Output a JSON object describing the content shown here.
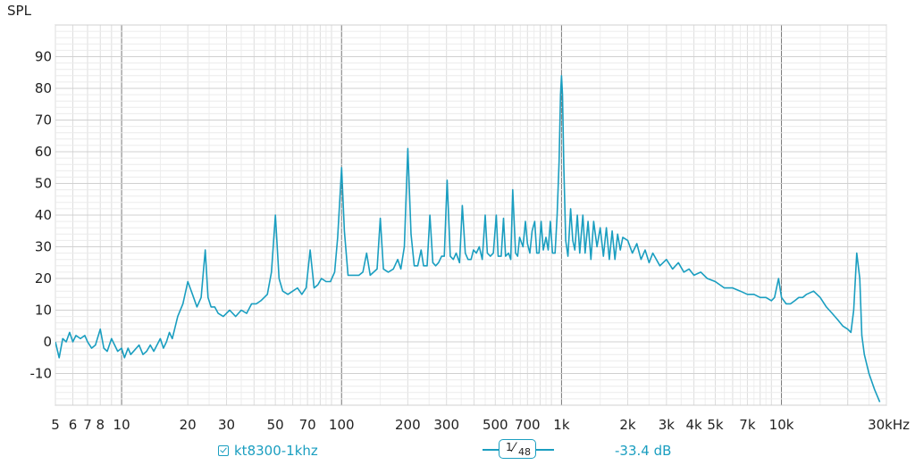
{
  "chart_data": {
    "type": "line",
    "ylabel": "SPL",
    "x_scale": "log",
    "xlim": [
      5,
      30000
    ],
    "ylim": [
      -20,
      100
    ],
    "x_tick_labels": [
      {
        "v": 5,
        "label": "5"
      },
      {
        "v": 6,
        "label": "6"
      },
      {
        "v": 7,
        "label": "7"
      },
      {
        "v": 8,
        "label": "8"
      },
      {
        "v": 10,
        "label": "10"
      },
      {
        "v": 20,
        "label": "20"
      },
      {
        "v": 30,
        "label": "30"
      },
      {
        "v": 50,
        "label": "50"
      },
      {
        "v": 70,
        "label": "70"
      },
      {
        "v": 100,
        "label": "100"
      },
      {
        "v": 200,
        "label": "200"
      },
      {
        "v": 300,
        "label": "300"
      },
      {
        "v": 500,
        "label": "500"
      },
      {
        "v": 700,
        "label": "700"
      },
      {
        "v": 1000,
        "label": "1k"
      },
      {
        "v": 2000,
        "label": "2k"
      },
      {
        "v": 3000,
        "label": "3k"
      },
      {
        "v": 4000,
        "label": "4k"
      },
      {
        "v": 5000,
        "label": "5k"
      },
      {
        "v": 7000,
        "label": "7k"
      },
      {
        "v": 10000,
        "label": "10k"
      },
      {
        "v": 30000,
        "label": "30kHz"
      }
    ],
    "y_ticks": [
      -10,
      0,
      10,
      20,
      30,
      40,
      50,
      60,
      70,
      80,
      90
    ],
    "grid": true,
    "series": [
      {
        "name": "kt8300-1khz",
        "color": "#1a9ec0",
        "points": [
          [
            5,
            0
          ],
          [
            5.2,
            -5
          ],
          [
            5.4,
            1
          ],
          [
            5.6,
            0
          ],
          [
            5.8,
            3
          ],
          [
            6,
            0
          ],
          [
            6.2,
            2
          ],
          [
            6.5,
            1
          ],
          [
            6.8,
            2
          ],
          [
            7,
            0
          ],
          [
            7.3,
            -2
          ],
          [
            7.6,
            -1
          ],
          [
            8,
            4
          ],
          [
            8.3,
            -2
          ],
          [
            8.6,
            -3
          ],
          [
            9,
            1
          ],
          [
            9.3,
            -1
          ],
          [
            9.6,
            -3
          ],
          [
            10,
            -2
          ],
          [
            10.3,
            -5
          ],
          [
            10.7,
            -2
          ],
          [
            11,
            -4
          ],
          [
            12,
            -1
          ],
          [
            12.5,
            -4
          ],
          [
            13,
            -3
          ],
          [
            13.5,
            -1
          ],
          [
            14,
            -3
          ],
          [
            15,
            1
          ],
          [
            15.5,
            -2
          ],
          [
            16,
            0
          ],
          [
            16.5,
            3
          ],
          [
            17,
            1
          ],
          [
            18,
            8
          ],
          [
            19,
            12
          ],
          [
            20,
            19
          ],
          [
            20.5,
            17
          ],
          [
            21,
            15
          ],
          [
            22,
            11
          ],
          [
            23,
            14
          ],
          [
            24,
            29
          ],
          [
            24.7,
            14
          ],
          [
            25.5,
            11
          ],
          [
            26.5,
            11
          ],
          [
            27.5,
            9
          ],
          [
            29,
            8
          ],
          [
            31,
            10
          ],
          [
            33,
            8
          ],
          [
            35,
            10
          ],
          [
            37,
            9
          ],
          [
            39,
            12
          ],
          [
            41,
            12
          ],
          [
            43,
            13
          ],
          [
            46,
            15
          ],
          [
            48,
            22
          ],
          [
            50,
            40
          ],
          [
            52,
            20
          ],
          [
            54,
            16
          ],
          [
            57,
            15
          ],
          [
            60,
            16
          ],
          [
            63,
            17
          ],
          [
            66,
            15
          ],
          [
            69,
            17
          ],
          [
            72,
            29
          ],
          [
            75,
            17
          ],
          [
            78,
            18
          ],
          [
            81,
            20
          ],
          [
            85,
            19
          ],
          [
            89,
            19
          ],
          [
            93,
            22
          ],
          [
            96,
            33
          ],
          [
            100,
            55
          ],
          [
            103,
            35
          ],
          [
            107,
            21
          ],
          [
            113,
            21
          ],
          [
            120,
            21
          ],
          [
            125,
            22
          ],
          [
            130,
            28
          ],
          [
            135,
            21
          ],
          [
            145,
            23
          ],
          [
            150,
            39
          ],
          [
            155,
            23
          ],
          [
            163,
            22
          ],
          [
            172,
            23
          ],
          [
            180,
            26
          ],
          [
            186,
            23
          ],
          [
            193,
            30
          ],
          [
            200,
            61
          ],
          [
            207,
            34
          ],
          [
            214,
            24
          ],
          [
            222,
            24
          ],
          [
            230,
            29
          ],
          [
            236,
            24
          ],
          [
            245,
            24
          ],
          [
            252,
            40
          ],
          [
            260,
            25
          ],
          [
            268,
            24
          ],
          [
            276,
            25
          ],
          [
            285,
            27
          ],
          [
            293,
            27
          ],
          [
            302,
            51
          ],
          [
            312,
            27
          ],
          [
            322,
            26
          ],
          [
            332,
            28
          ],
          [
            344,
            25
          ],
          [
            354,
            43
          ],
          [
            365,
            28
          ],
          [
            376,
            26
          ],
          [
            388,
            26
          ],
          [
            398,
            29
          ],
          [
            410,
            28
          ],
          [
            423,
            30
          ],
          [
            436,
            26
          ],
          [
            450,
            40
          ],
          [
            460,
            28
          ],
          [
            475,
            27
          ],
          [
            490,
            28
          ],
          [
            505,
            40
          ],
          [
            515,
            27
          ],
          [
            532,
            27
          ],
          [
            545,
            39
          ],
          [
            557,
            27
          ],
          [
            575,
            28
          ],
          [
            588,
            26
          ],
          [
            600,
            48
          ],
          [
            618,
            28
          ],
          [
            632,
            27
          ],
          [
            645,
            33
          ],
          [
            668,
            30
          ],
          [
            685,
            38
          ],
          [
            700,
            31
          ],
          [
            718,
            28
          ],
          [
            735,
            35
          ],
          [
            755,
            38
          ],
          [
            772,
            28
          ],
          [
            790,
            28
          ],
          [
            808,
            38
          ],
          [
            826,
            29
          ],
          [
            850,
            33
          ],
          [
            870,
            29
          ],
          [
            890,
            38
          ],
          [
            910,
            28
          ],
          [
            935,
            28
          ],
          [
            955,
            40
          ],
          [
            975,
            57
          ],
          [
            990,
            78
          ],
          [
            1000,
            84
          ],
          [
            1010,
            78
          ],
          [
            1025,
            55
          ],
          [
            1045,
            32
          ],
          [
            1070,
            27
          ],
          [
            1100,
            42
          ],
          [
            1125,
            32
          ],
          [
            1150,
            29
          ],
          [
            1180,
            40
          ],
          [
            1210,
            28
          ],
          [
            1250,
            40
          ],
          [
            1280,
            28
          ],
          [
            1320,
            38
          ],
          [
            1360,
            26
          ],
          [
            1400,
            38
          ],
          [
            1450,
            30
          ],
          [
            1500,
            36
          ],
          [
            1550,
            27
          ],
          [
            1600,
            36
          ],
          [
            1650,
            26
          ],
          [
            1700,
            35
          ],
          [
            1750,
            26
          ],
          [
            1800,
            34
          ],
          [
            1850,
            29
          ],
          [
            1900,
            33
          ],
          [
            2000,
            32
          ],
          [
            2100,
            28
          ],
          [
            2200,
            31
          ],
          [
            2300,
            26
          ],
          [
            2400,
            29
          ],
          [
            2500,
            25
          ],
          [
            2600,
            28
          ],
          [
            2800,
            24
          ],
          [
            3000,
            26
          ],
          [
            3200,
            23
          ],
          [
            3400,
            25
          ],
          [
            3600,
            22
          ],
          [
            3800,
            23
          ],
          [
            4000,
            21
          ],
          [
            4300,
            22
          ],
          [
            4600,
            20
          ],
          [
            5000,
            19
          ],
          [
            5500,
            17
          ],
          [
            6000,
            17
          ],
          [
            6500,
            16
          ],
          [
            7000,
            15
          ],
          [
            7500,
            15
          ],
          [
            8000,
            14
          ],
          [
            8500,
            14
          ],
          [
            9000,
            13
          ],
          [
            9300,
            14
          ],
          [
            9700,
            20
          ],
          [
            10000,
            14
          ],
          [
            10500,
            12
          ],
          [
            11000,
            12
          ],
          [
            11500,
            13
          ],
          [
            12000,
            14
          ],
          [
            12500,
            14
          ],
          [
            13000,
            15
          ],
          [
            14000,
            16
          ],
          [
            15000,
            14
          ],
          [
            16000,
            11
          ],
          [
            17000,
            9
          ],
          [
            18000,
            7
          ],
          [
            19000,
            5
          ],
          [
            20000,
            4
          ],
          [
            20700,
            3
          ],
          [
            21300,
            10
          ],
          [
            22000,
            28
          ],
          [
            22700,
            20
          ],
          [
            23200,
            2
          ],
          [
            23800,
            -4
          ],
          [
            25000,
            -10
          ],
          [
            26500,
            -15
          ],
          [
            28000,
            -19
          ]
        ]
      }
    ]
  },
  "legend": {
    "series_label": "kt8300-1khz",
    "smoothing_numerator": "1",
    "smoothing_denominator": "48",
    "cursor_readout": "-33.4 dB"
  }
}
